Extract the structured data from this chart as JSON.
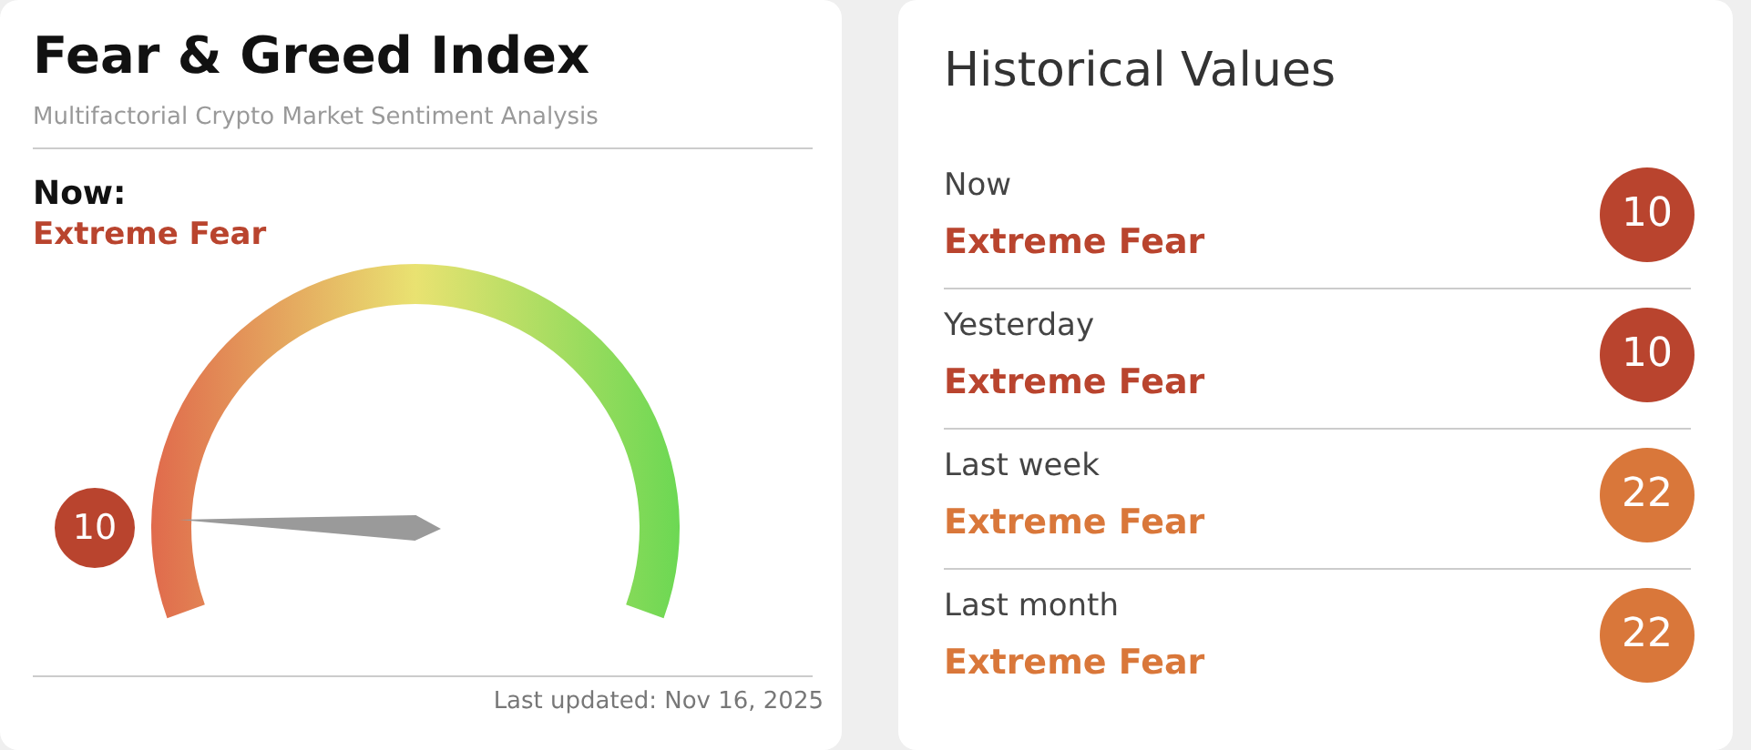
{
  "chart_data": [
    {
      "type": "other",
      "title": "Fear & Greed Index",
      "subtitle": "Multifactorial Crypto Market Sentiment Analysis",
      "values": [
        10
      ],
      "colors": [
        "#b9442e"
      ],
      "data_labels": true,
      "annotations": [
        "Now:",
        "Extreme Fear",
        "Last updated: Nov 16, 2025"
      ]
    },
    {
      "type": "other",
      "title": "Historical Values",
      "values": [
        10,
        10,
        22,
        22
      ],
      "colors": [
        "#b9442e",
        "#b9442e",
        "#d9773a",
        "#d9773a"
      ],
      "data_labels": true,
      "annotations": [
        "Now",
        "Extreme Fear",
        "Yesterday",
        "Extreme Fear",
        "Last week",
        "Extreme Fear",
        "Last month",
        "Extreme Fear"
      ]
    }
  ]
}
